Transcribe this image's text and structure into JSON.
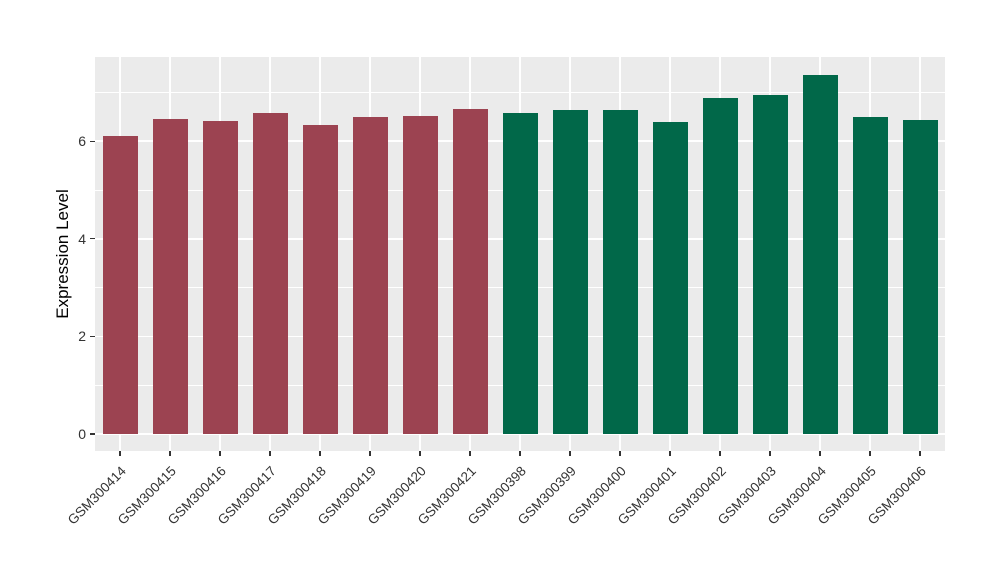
{
  "chart_data": {
    "type": "bar",
    "title": "",
    "xlabel": "",
    "ylabel": "Expression Level",
    "categories": [
      "GSM300414",
      "GSM300415",
      "GSM300416",
      "GSM300417",
      "GSM300418",
      "GSM300419",
      "GSM300420",
      "GSM300421",
      "GSM300398",
      "GSM300399",
      "GSM300400",
      "GSM300401",
      "GSM300402",
      "GSM300403",
      "GSM300404",
      "GSM300405",
      "GSM300406"
    ],
    "values": [
      6.1,
      6.46,
      6.41,
      6.58,
      6.34,
      6.5,
      6.52,
      6.67,
      6.58,
      6.65,
      6.65,
      6.4,
      6.88,
      6.96,
      7.37,
      6.49,
      6.43
    ],
    "groups": [
      "maroon",
      "maroon",
      "maroon",
      "maroon",
      "maroon",
      "maroon",
      "maroon",
      "maroon",
      "green",
      "green",
      "green",
      "green",
      "green",
      "green",
      "green",
      "green",
      "green"
    ],
    "group_colors": {
      "maroon": "#9C4351",
      "green": "#016849"
    },
    "yticks": [
      0,
      2,
      4,
      6
    ],
    "minor_yticks": [
      1,
      3,
      5,
      7
    ],
    "ylim": [
      -0.35,
      7.73
    ],
    "bar_width_ratio": 0.7,
    "panel_bg": "#EBEBEB",
    "grid_color": "#FFFFFF",
    "tick_mark_color": "#333333",
    "axis_text_color": "#333333",
    "legend_position": "none",
    "grid": "on"
  }
}
